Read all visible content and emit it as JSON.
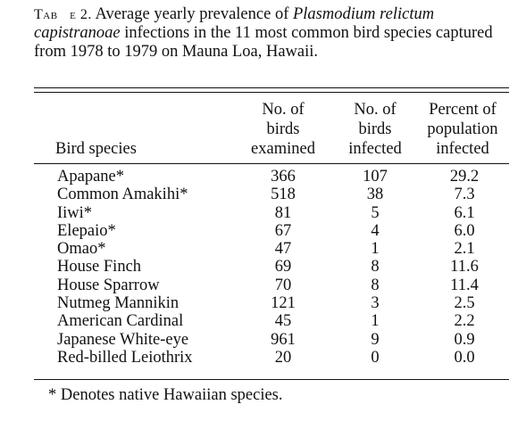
{
  "caption": {
    "label": "Tabɪ e 2.",
    "text_a": "Average yearly prevalence of ",
    "species_italic": "Plasmodium relictum capistranoae",
    "text_b": " infections in the 11 most common bird species captured from 1978 to 1979 on Mauna Loa, Hawaii."
  },
  "headers": {
    "species": "Bird species",
    "examined": [
      "No. of",
      "birds",
      "examined"
    ],
    "infected": [
      "No. of",
      "birds",
      "infected"
    ],
    "percent": [
      "Percent of",
      "population",
      "infected"
    ]
  },
  "rows": [
    {
      "species": "Apapane*",
      "examined": "366",
      "infected": "107",
      "percent": "29.2"
    },
    {
      "species": "Common Amakihi*",
      "examined": "518",
      "infected": "38",
      "percent": "7.3"
    },
    {
      "species": "Iiwi*",
      "examined": "81",
      "infected": "5",
      "percent": "6.1"
    },
    {
      "species": "Elepaio*",
      "examined": "67",
      "infected": "4",
      "percent": "6.0"
    },
    {
      "species": "Omao*",
      "examined": "47",
      "infected": "1",
      "percent": "2.1"
    },
    {
      "species": "House Finch",
      "examined": "69",
      "infected": "8",
      "percent": "11.6"
    },
    {
      "species": "House Sparrow",
      "examined": "70",
      "infected": "8",
      "percent": "11.4"
    },
    {
      "species": "Nutmeg Mannikin",
      "examined": "121",
      "infected": "3",
      "percent": "2.5"
    },
    {
      "species": "American Cardinal",
      "examined": "45",
      "infected": "1",
      "percent": "2.2"
    },
    {
      "species": "Japanese White-eye",
      "examined": "961",
      "infected": "9",
      "percent": "0.9"
    },
    {
      "species": "Red-billed Leiothrix",
      "examined": "20",
      "infected": "0",
      "percent": "0.0"
    }
  ],
  "footnote": "* Denotes native Hawaiian species."
}
